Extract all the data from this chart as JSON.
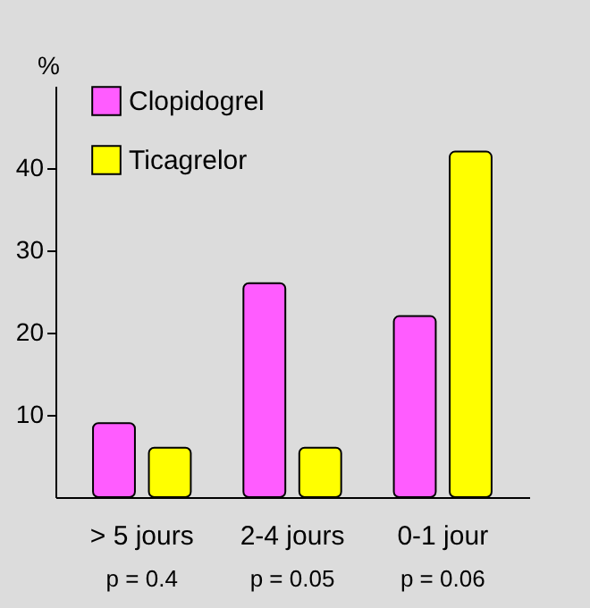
{
  "chart_data": {
    "type": "bar",
    "ylabel": "%",
    "categories": [
      "> 5 jours",
      "2-4 jours",
      "0-1 jour"
    ],
    "series": [
      {
        "name": "Clopidogrel",
        "color": "#ff5cff",
        "values": [
          9,
          26,
          22
        ]
      },
      {
        "name": "Ticagrelor",
        "color": "#ffff00",
        "values": [
          6,
          6,
          42
        ]
      }
    ],
    "ylim": [
      0,
      50
    ],
    "yticks": [
      10,
      20,
      30,
      40
    ],
    "legend": "top left",
    "annotations": [
      "p = 0.4",
      "p = 0.05",
      "p = 0.06"
    ]
  }
}
